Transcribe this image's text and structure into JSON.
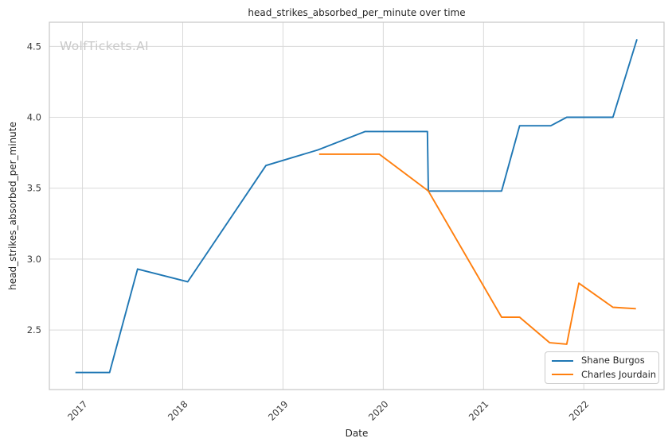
{
  "watermark": "WolfTickets.AI",
  "colors": {
    "background": "#ffffff",
    "grid": "#d9d9d9",
    "spine": "#c6c6c6",
    "text": "#262626",
    "tick_text": "#3b3b3b",
    "watermark": "#c9c9c9",
    "series_blue": "#1f77b4",
    "series_orange": "#ff7f0e"
  },
  "chart_data": {
    "type": "line",
    "title": "head_strikes_absorbed_per_minute over time",
    "xlabel": "Date",
    "ylabel": "head_strikes_absorbed_per_minute",
    "grid": true,
    "legend_position": "lower right",
    "xlim": [
      2016.67,
      2022.8
    ],
    "ylim": [
      2.08,
      4.67
    ],
    "x_ticks": [
      2017,
      2018,
      2019,
      2020,
      2021,
      2022
    ],
    "x_tick_labels": [
      "2017",
      "2018",
      "2019",
      "2020",
      "2021",
      "2022"
    ],
    "y_ticks": [
      2.5,
      3.0,
      3.5,
      4.0,
      4.5
    ],
    "y_tick_labels": [
      "2.5",
      "3.0",
      "3.5",
      "4.0",
      "4.5"
    ],
    "x_unit": "decimal year",
    "series": [
      {
        "name": "Shane Burgos",
        "color": "#1f77b4",
        "points": [
          [
            2016.93,
            2.2
          ],
          [
            2017.27,
            2.2
          ],
          [
            2017.55,
            2.93
          ],
          [
            2018.05,
            2.84
          ],
          [
            2018.83,
            3.66
          ],
          [
            2019.35,
            3.77
          ],
          [
            2019.82,
            3.9
          ],
          [
            2020.44,
            3.9
          ],
          [
            2020.45,
            3.48
          ],
          [
            2021.18,
            3.48
          ],
          [
            2021.36,
            3.94
          ],
          [
            2021.67,
            3.94
          ],
          [
            2021.83,
            4.0
          ],
          [
            2022.29,
            4.0
          ],
          [
            2022.53,
            4.55
          ]
        ]
      },
      {
        "name": "Charles Jourdain",
        "color": "#ff7f0e",
        "points": [
          [
            2019.36,
            3.74
          ],
          [
            2019.96,
            3.74
          ],
          [
            2020.45,
            3.48
          ],
          [
            2021.18,
            2.59
          ],
          [
            2021.36,
            2.59
          ],
          [
            2021.66,
            2.41
          ],
          [
            2021.83,
            2.4
          ],
          [
            2021.95,
            2.83
          ],
          [
            2022.29,
            2.66
          ],
          [
            2022.52,
            2.65
          ]
        ]
      }
    ]
  }
}
